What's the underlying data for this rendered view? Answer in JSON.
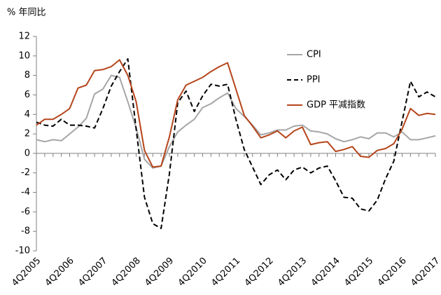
{
  "chart_data": {
    "type": "line",
    "y_label": "% 年同比",
    "categories": [
      "4Q2005",
      null,
      null,
      null,
      "4Q2006",
      null,
      null,
      null,
      "4Q2007",
      null,
      null,
      null,
      "4Q2008",
      null,
      null,
      null,
      "4Q2009",
      null,
      null,
      null,
      "4Q2010",
      null,
      null,
      null,
      "4Q2011",
      null,
      null,
      null,
      "4Q2012",
      null,
      null,
      null,
      "4Q2013",
      null,
      null,
      null,
      "4Q2014",
      null,
      null,
      null,
      "4Q2015",
      null,
      null,
      null,
      "4Q2016",
      null,
      null,
      null,
      "4Q2017"
    ],
    "series": [
      {
        "name": "CPI",
        "color": "#a6a6a6",
        "dashed": false,
        "values": [
          1.4,
          1.2,
          1.4,
          1.3,
          2.0,
          2.7,
          3.6,
          6.1,
          6.6,
          8.0,
          7.8,
          5.3,
          2.6,
          -0.6,
          -1.5,
          -1.3,
          0.7,
          2.2,
          2.9,
          3.5,
          4.7,
          5.1,
          5.7,
          6.2,
          4.6,
          3.8,
          2.9,
          1.9,
          2.1,
          2.4,
          2.4,
          2.8,
          2.9,
          2.3,
          2.2,
          2.0,
          1.5,
          1.2,
          1.4,
          1.7,
          1.5,
          2.1,
          2.1,
          1.7,
          2.2,
          1.4,
          1.4,
          1.6,
          1.8
        ]
      },
      {
        "name": "PPI",
        "color": "#000000",
        "dashed": true,
        "values": [
          3.2,
          2.9,
          2.8,
          3.5,
          2.9,
          2.9,
          2.8,
          2.6,
          4.6,
          6.9,
          8.4,
          9.7,
          2.5,
          -4.5,
          -7.2,
          -7.7,
          -2.1,
          5.2,
          6.4,
          4.3,
          5.9,
          7.1,
          6.9,
          7.1,
          3.5,
          0.4,
          -1.4,
          -3.2,
          -2.2,
          -1.7,
          -2.7,
          -1.7,
          -1.4,
          -2.0,
          -1.5,
          -1.3,
          -2.8,
          -4.5,
          -4.6,
          -5.7,
          -5.9,
          -4.8,
          -2.6,
          -0.8,
          3.3,
          7.4,
          5.8,
          6.3,
          5.8
        ]
      },
      {
        "name": "GDP 平减指数",
        "color": "#b5451b",
        "dashed": false,
        "values": [
          2.9,
          3.5,
          3.5,
          4.0,
          4.6,
          6.7,
          7.0,
          8.5,
          8.6,
          8.9,
          9.6,
          8.0,
          5.3,
          0.3,
          -1.4,
          -1.3,
          1.7,
          5.5,
          7.0,
          7.4,
          7.8,
          8.4,
          8.9,
          9.3,
          6.6,
          3.9,
          2.8,
          1.6,
          1.9,
          2.3,
          1.6,
          2.3,
          2.7,
          0.9,
          1.1,
          1.2,
          0.2,
          0.4,
          0.7,
          -0.3,
          -0.4,
          0.3,
          0.5,
          1.0,
          2.5,
          4.6,
          3.9,
          4.1,
          4.0
        ]
      }
    ],
    "ylim": [
      -10,
      12
    ],
    "yticks": [
      -10,
      -8,
      -6,
      -4,
      -2,
      0,
      2,
      4,
      6,
      8,
      10,
      12
    ],
    "grid": false,
    "legend": "upper-right"
  }
}
